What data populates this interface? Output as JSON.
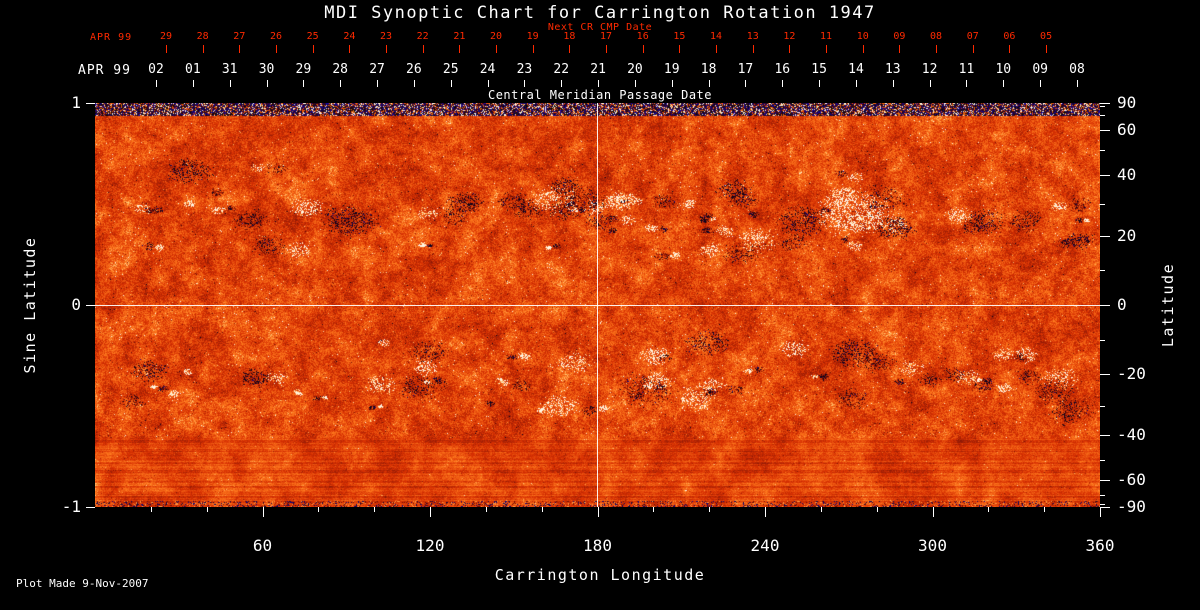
{
  "title": "MDI Synoptic Chart for Carrington Rotation 1947",
  "footer": "Plot Made  9-Nov-2007",
  "colors": {
    "background": "#000000",
    "foreground": "#ffffff",
    "accent_red": "#ff2a00"
  },
  "chart_data": {
    "type": "heatmap",
    "title": "MDI Synoptic Chart for Carrington Rotation 1947",
    "xlabel": "Carrington Longitude",
    "ylabel_left": "Sine Latitude",
    "ylabel_right": "Latitude",
    "xlim": [
      0,
      360
    ],
    "ylim_sine_latitude": [
      -1,
      1
    ],
    "x_major_ticks": [
      60,
      120,
      180,
      240,
      300,
      360
    ],
    "x_minor_tick_step": 20,
    "left_axis_ticks": [
      1,
      0,
      -1
    ],
    "right_axis_tick_degrees": [
      90,
      60,
      40,
      20,
      0,
      -20,
      -40,
      -60,
      -90
    ],
    "right_axis_minor_step_degrees": 10,
    "grid_crosshair": {
      "longitude": 180,
      "sine_latitude": 0
    },
    "top_axis": {
      "label": "Central Meridian Passage Date",
      "cmp_axis": {
        "month_label": "APR 99",
        "day_labels": [
          "02",
          "01",
          "31",
          "30",
          "29",
          "28",
          "27",
          "26",
          "25",
          "24",
          "23",
          "22",
          "21",
          "20",
          "19",
          "18",
          "17",
          "16",
          "15",
          "14",
          "13",
          "12",
          "11",
          "10",
          "09",
          "08"
        ]
      },
      "next_cr_axis": {
        "label": "Next CR CMP Date",
        "month_label": "APR 99",
        "day_labels": [
          "29",
          "28",
          "27",
          "26",
          "25",
          "24",
          "23",
          "22",
          "21",
          "20",
          "19",
          "18",
          "17",
          "16",
          "15",
          "14",
          "13",
          "12",
          "11",
          "10",
          "09",
          "08",
          "07",
          "06",
          "05"
        ]
      }
    },
    "colormap": "solar magnetogram red-orange; dark navy/black = negative polarity, white/cream = positive polarity",
    "features": "mottled red/orange quiet-sun background with bipolar active-region clusters (dark and bright patches) concentrated in two activity belts near +/-20-35 degrees latitude; noisy blue/white polar rows along the top edge; horizontal streaking near the bottom edge; white crosshair gridlines at longitude 180 and sine latitude 0"
  }
}
